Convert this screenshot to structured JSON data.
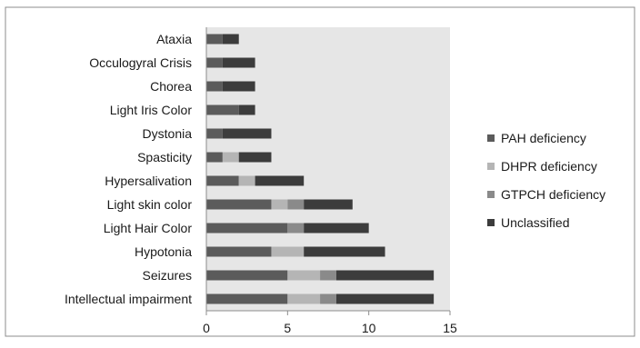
{
  "chart_data": {
    "type": "bar",
    "orientation": "horizontal",
    "stacked": true,
    "title": "",
    "xlabel": "",
    "ylabel": "",
    "xlim": [
      0,
      15
    ],
    "x_ticks": [
      0,
      5,
      10,
      15
    ],
    "grid": false,
    "legend_position": "right",
    "plot_background": "#e6e6e6",
    "categories": [
      "Intellectual impairment",
      "Seizures",
      "Hypotonia",
      "Light Hair Color",
      "Light skin color",
      "Hypersalivation",
      "Spasticity",
      "Dystonia",
      "Light Iris Color",
      "Chorea",
      "Occulogyral Crisis",
      "Ataxia"
    ],
    "series": [
      {
        "name": "PAH deficiency",
        "color": "#5b5b5b",
        "values": [
          5,
          5,
          4,
          5,
          4,
          2,
          1,
          1,
          2,
          1,
          1,
          1
        ]
      },
      {
        "name": "DHPR deficiency",
        "color": "#b5b5b5",
        "values": [
          2,
          2,
          2,
          0,
          1,
          1,
          1,
          0,
          0,
          0,
          0,
          0
        ]
      },
      {
        "name": "GTPCH deficiency",
        "color": "#8a8a8a",
        "values": [
          1,
          1,
          0,
          1,
          1,
          0,
          0,
          0,
          0,
          0,
          0,
          0
        ]
      },
      {
        "name": "Unclassified",
        "color": "#3c3c3c",
        "values": [
          6,
          6,
          5,
          4,
          3,
          3,
          2,
          3,
          1,
          2,
          2,
          1
        ]
      }
    ]
  }
}
